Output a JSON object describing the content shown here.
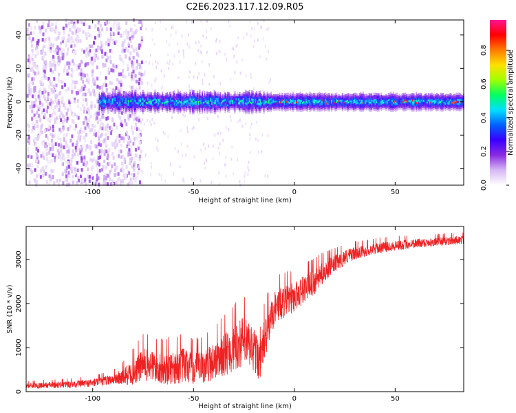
{
  "title": "C2E6.2023.117.12.09.R05",
  "colors": {
    "snr_line": "#ee2222",
    "axis": "#000000"
  },
  "chart_data": [
    {
      "type": "heatmap",
      "name": "spectrogram",
      "xlabel": "Height of straight line (km)",
      "ylabel": "Frequency (Hz)",
      "xlim": [
        -133,
        84
      ],
      "ylim": [
        -50,
        49
      ],
      "xticks": [
        -100,
        -50,
        0,
        50
      ],
      "yticks": [
        -40,
        -20,
        0,
        20,
        40
      ],
      "colorbar": {
        "label": "Normalized spectral amplitude",
        "range": [
          0,
          0.98
        ],
        "ticks": [
          0.0,
          0.2,
          0.4,
          0.6,
          0.8
        ],
        "tick_labels": [
          "0.0",
          "0.2",
          "0.4",
          "0.6",
          "0.8"
        ],
        "colormap": [
          "#ffffff",
          "#d6b8f5",
          "#8a2be2",
          "#3a00ff",
          "#0060ff",
          "#00e0ff",
          "#00ff60",
          "#a0ff00",
          "#ffe000",
          "#ff7a00",
          "#ff0000",
          "#ff1493"
        ]
      },
      "description_features": {
        "noise_region_x": [
          -133,
          -80
        ],
        "signal_band_start_x": -97,
        "signal_band_half_width_hz": 4,
        "strong_band_x": [
          -10,
          84
        ]
      }
    },
    {
      "type": "line",
      "name": "snr",
      "xlabel": "Height of straight line (km)",
      "ylabel": "SNR (10 * v/v)",
      "xlim": [
        -133,
        84
      ],
      "ylim": [
        0,
        3750
      ],
      "xticks": [
        -100,
        -50,
        0,
        50
      ],
      "yticks": [
        0,
        1000,
        2000,
        3000
      ],
      "series": [
        {
          "name": "SNR",
          "x": [
            -133,
            -120,
            -110,
            -100,
            -90,
            -85,
            -80,
            -75,
            -70,
            -65,
            -60,
            -55,
            -50,
            -45,
            -40,
            -35,
            -30,
            -25,
            -20,
            -17,
            -15,
            -12,
            -10,
            -5,
            0,
            5,
            10,
            15,
            20,
            25,
            30,
            40,
            50,
            60,
            70,
            84
          ],
          "y": [
            140,
            150,
            170,
            200,
            280,
            330,
            450,
            620,
            580,
            520,
            560,
            600,
            520,
            580,
            700,
            850,
            1000,
            1150,
            950,
            700,
            1150,
            1600,
            1900,
            2050,
            2150,
            2350,
            2500,
            2750,
            2900,
            3050,
            3150,
            3250,
            3320,
            3370,
            3400,
            3450
          ],
          "amp": [
            60,
            70,
            80,
            90,
            120,
            200,
            300,
            400,
            380,
            380,
            400,
            420,
            380,
            400,
            450,
            500,
            550,
            600,
            550,
            450,
            500,
            450,
            400,
            380,
            350,
            330,
            300,
            250,
            200,
            180,
            150,
            130,
            120,
            110,
            100,
            100
          ]
        }
      ]
    }
  ]
}
